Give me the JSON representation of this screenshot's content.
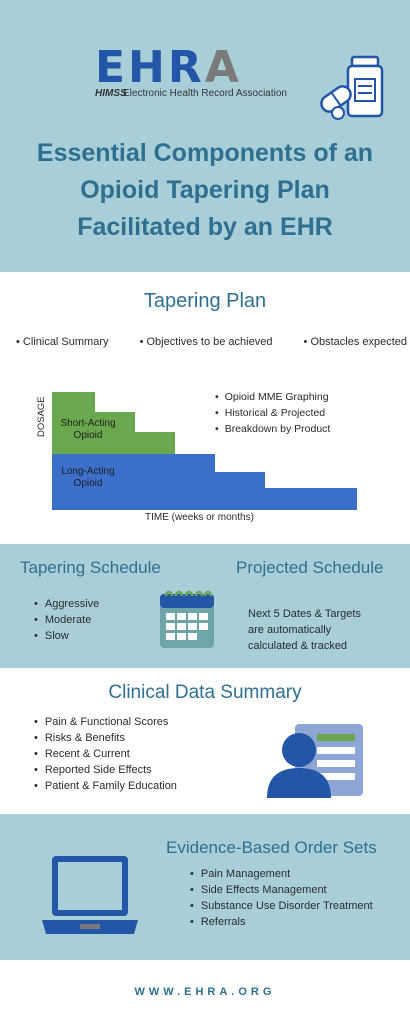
{
  "header": {
    "logo_text_main": "EHR",
    "logo_text_a": "A",
    "logo_himss": "HIMSS",
    "logo_subtitle": "Electronic Health Record Association",
    "title": "Essential Components of an Opioid Tapering Plan Facilitated by an EHR"
  },
  "tapering_plan": {
    "heading": "Tapering Plan",
    "items": [
      "Clinical Summary",
      "Objectives to be achieved",
      "Obstacles expected"
    ],
    "chart_labels": {
      "short_acting": [
        "Short-Acting",
        "Opioid"
      ],
      "long_acting": [
        "Long-Acting",
        "Opioid"
      ],
      "y_axis": "DOSAGE",
      "x_axis": "TIME (weeks or months)"
    },
    "chart_bullets": [
      "Opioid MME Graphing",
      "Historical & Projected",
      "Breakdown by Product"
    ]
  },
  "schedule": {
    "heading_left": "Tapering Schedule",
    "heading_right": "Projected Schedule",
    "items": [
      "Aggressive",
      "Moderate",
      "Slow"
    ],
    "projected_lines": [
      "Next 5 Dates & Targets",
      "are automatically",
      "calculated & tracked"
    ]
  },
  "clinical_data": {
    "heading": "Clinical Data Summary",
    "items": [
      "Pain & Functional Scores",
      "Risks & Benefits",
      "Recent & Current",
      "Reported Side Effects",
      "Patient & Family Education"
    ]
  },
  "order_sets": {
    "heading": "Evidence-Based Order Sets",
    "items": [
      "Pain Management",
      "Side Effects Management",
      "Substance Use Disorder Treatment",
      "Referrals"
    ]
  },
  "footer": {
    "url": "WWW.EHRA.ORG"
  },
  "colors": {
    "section_blue": "#a8cfd8",
    "heading_blue": "#2f6f91",
    "brand_blue": "#2356a7",
    "short_acting_green": "#6aa84f",
    "long_acting_blue": "#3c6fc9"
  }
}
